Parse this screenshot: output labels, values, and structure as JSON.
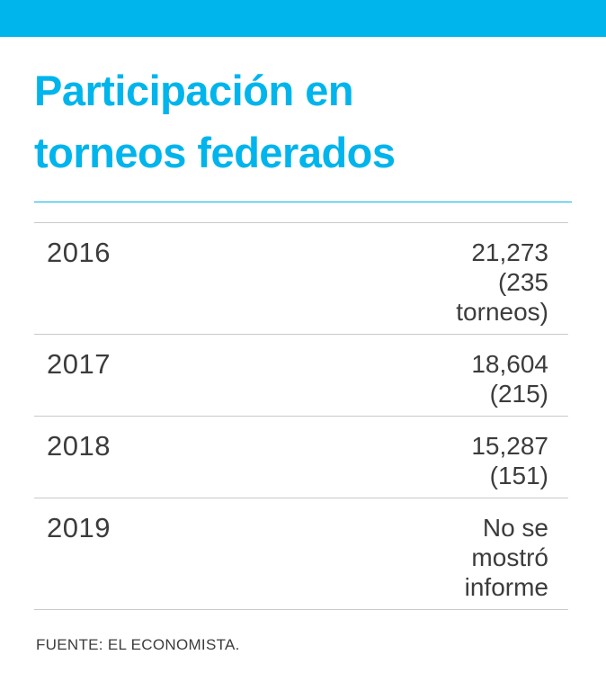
{
  "colors": {
    "accent": "#00b4ec",
    "text": "#3c3c3c",
    "divider": "#c9c9c9"
  },
  "title": {
    "line1": "Participación en",
    "line2": "torneos federados"
  },
  "rows": [
    {
      "year": "2016",
      "value_lines": [
        "21,273",
        "(235",
        "torneos)"
      ]
    },
    {
      "year": "2017",
      "value_lines": [
        "18,604",
        "(215)"
      ]
    },
    {
      "year": "2018",
      "value_lines": [
        "15,287",
        "(151)"
      ]
    },
    {
      "year": "2019",
      "value_lines": [
        "No se",
        "mostró",
        "informe"
      ]
    }
  ],
  "source": "FUENTE: EL ECONOMISTA."
}
